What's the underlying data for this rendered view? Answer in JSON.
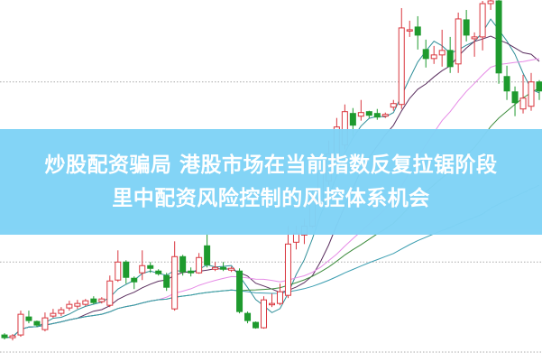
{
  "headline": {
    "line1": "炒股配资骗局 港股市场在当前指数反复拉锯阶段",
    "line2": "里中配资风险控制的风控体系机会"
  },
  "colors": {
    "banner": "#80d3f6",
    "up": "#d9363e",
    "down": "#1e9a2e",
    "ma5": "#2f8f99",
    "ma10": "#5b2f5f",
    "ma20": "#e68be6",
    "ma30": "#3d8c3d",
    "ma60": "#3a9db0",
    "grid": "#aaaaaa"
  },
  "chart_data": {
    "type": "candlestick",
    "ylim": [
      0,
      400
    ],
    "grid_lines": [
      10,
      110,
      310
    ],
    "moving_averages": [
      5,
      10,
      20,
      30,
      60
    ],
    "candles": [
      [
        29,
        26,
        31,
        24
      ],
      [
        26,
        28,
        30,
        23
      ],
      [
        29,
        52,
        56,
        27
      ],
      [
        49,
        45,
        56,
        42
      ],
      [
        44,
        40,
        45,
        38
      ],
      [
        35,
        48,
        54,
        33
      ],
      [
        50,
        53,
        58,
        48
      ],
      [
        53,
        57,
        60,
        50
      ],
      [
        59,
        63,
        67,
        56
      ],
      [
        61,
        64,
        68,
        58
      ],
      [
        63,
        67,
        69,
        61
      ],
      [
        69,
        65,
        72,
        63
      ],
      [
        66,
        69,
        71,
        64
      ],
      [
        62,
        89,
        95,
        60
      ],
      [
        90,
        110,
        123,
        88
      ],
      [
        110,
        93,
        112,
        86
      ],
      [
        92,
        88,
        94,
        80
      ],
      [
        98,
        106,
        123,
        90
      ],
      [
        106,
        103,
        110,
        98
      ],
      [
        100,
        97,
        102,
        95
      ],
      [
        95,
        82,
        98,
        78
      ],
      [
        58,
        116,
        133,
        56
      ],
      [
        116,
        99,
        118,
        95
      ],
      [
        100,
        98,
        104,
        94
      ],
      [
        98,
        115,
        120,
        97
      ],
      [
        128,
        107,
        141,
        104
      ],
      [
        102,
        104,
        110,
        100
      ],
      [
        104,
        102,
        110,
        100
      ],
      [
        101,
        103,
        105,
        99
      ],
      [
        100,
        55,
        103,
        53
      ],
      [
        53,
        45,
        55,
        42
      ],
      [
        43,
        37,
        44,
        36
      ],
      [
        37,
        68,
        72,
        36
      ],
      [
        64,
        64,
        75,
        60
      ],
      [
        64,
        77,
        86,
        62
      ],
      [
        73,
        130,
        150,
        70
      ],
      [
        132,
        142,
        150,
        124
      ],
      [
        140,
        150,
        158,
        130
      ],
      [
        150,
        180,
        190,
        148
      ],
      [
        175,
        210,
        220,
        172
      ],
      [
        200,
        230,
        245,
        195
      ],
      [
        225,
        260,
        270,
        220
      ],
      [
        240,
        277,
        285,
        235
      ],
      [
        275,
        262,
        281,
        250
      ],
      [
        272,
        276,
        290,
        267
      ],
      [
        277,
        273,
        278,
        270
      ],
      [
        275,
        271,
        280,
        268
      ],
      [
        272,
        274,
        276,
        270
      ],
      [
        282,
        286,
        290,
        278
      ],
      [
        285,
        370,
        392,
        280
      ],
      [
        368,
        368,
        378,
        360
      ],
      [
        371,
        362,
        383,
        346
      ],
      [
        346,
        336,
        357,
        326
      ],
      [
        336,
        340,
        350,
        330
      ],
      [
        340,
        345,
        368,
        327
      ],
      [
        345,
        327,
        360,
        320
      ],
      [
        330,
        380,
        387,
        320
      ],
      [
        379,
        362,
        390,
        355
      ],
      [
        358,
        360,
        365,
        338
      ],
      [
        360,
        397,
        400,
        345
      ],
      [
        397,
        400,
        401,
        390
      ],
      [
        400,
        320,
        401,
        308
      ],
      [
        316,
        300,
        328,
        290
      ],
      [
        299,
        287,
        305,
        272
      ],
      [
        280,
        292,
        318,
        275
      ],
      [
        283,
        310,
        320,
        278
      ],
      [
        310,
        300,
        312,
        290
      ]
    ]
  }
}
